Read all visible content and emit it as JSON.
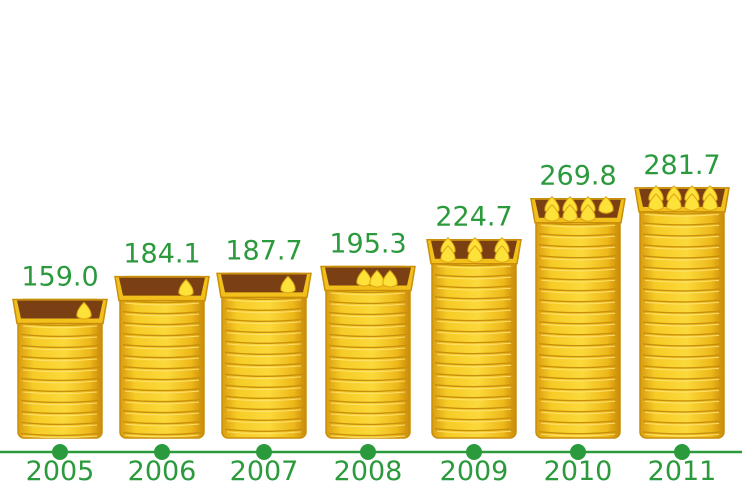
{
  "chart_data": {
    "type": "bar",
    "title": "",
    "xlabel": "",
    "ylabel": "",
    "categories": [
      "2005",
      "2006",
      "2007",
      "2008",
      "2009",
      "2010",
      "2011"
    ],
    "values": [
      159.0,
      184.1,
      187.7,
      195.3,
      224.7,
      269.8,
      281.7
    ],
    "value_labels": [
      "159.0",
      "184.1",
      "187.7",
      "195.3",
      "224.7",
      "269.8",
      "281.7"
    ],
    "filled_tokens": [
      1,
      1,
      1,
      3,
      6,
      7,
      8
    ],
    "grid": false,
    "legend": "none"
  },
  "colors": {
    "accent_green": "#2b9a3c",
    "basket_body": "#f2c01a",
    "basket_edge": "#c98f0a",
    "basket_interior": "#7a3f12",
    "token": "#fde23a"
  }
}
